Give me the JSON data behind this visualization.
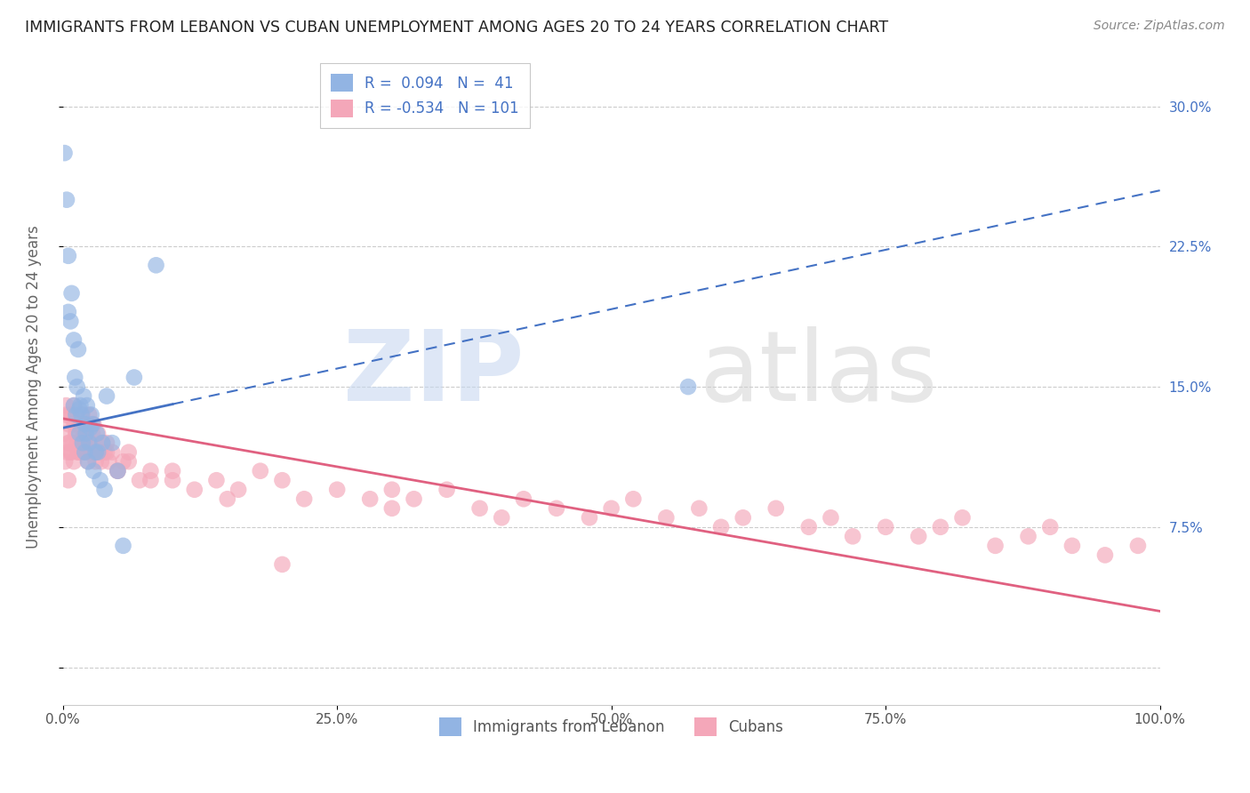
{
  "title": "IMMIGRANTS FROM LEBANON VS CUBAN UNEMPLOYMENT AMONG AGES 20 TO 24 YEARS CORRELATION CHART",
  "source": "Source: ZipAtlas.com",
  "ylabel": "Unemployment Among Ages 20 to 24 years",
  "xlim": [
    0,
    100
  ],
  "ylim": [
    -2,
    32
  ],
  "yticks": [
    0,
    7.5,
    15.0,
    22.5,
    30.0
  ],
  "xticks": [
    0,
    25,
    50,
    75,
    100
  ],
  "xticklabels": [
    "0.0%",
    "25.0%",
    "50.0%",
    "75.0%",
    "100.0%"
  ],
  "yticklabels": [
    "",
    "7.5%",
    "15.0%",
    "22.5%",
    "30.0%"
  ],
  "blue_color": "#92b4e3",
  "pink_color": "#f4a7b9",
  "blue_line_color": "#4472c4",
  "pink_line_color": "#e06080",
  "blue_line_start_x": 0,
  "blue_line_start_y": 12.8,
  "blue_line_end_x": 100,
  "blue_line_end_y": 25.5,
  "blue_solid_end_x": 10,
  "pink_line_start_x": 0,
  "pink_line_start_y": 13.3,
  "pink_line_end_x": 100,
  "pink_line_end_y": 3.0,
  "lebanon_x": [
    0.15,
    0.35,
    0.5,
    0.5,
    0.7,
    0.8,
    1.0,
    1.0,
    1.1,
    1.2,
    1.3,
    1.4,
    1.5,
    1.5,
    1.6,
    1.7,
    1.8,
    1.9,
    2.0,
    2.0,
    2.1,
    2.2,
    2.3,
    2.4,
    2.5,
    2.6,
    2.7,
    2.8,
    3.0,
    3.1,
    3.2,
    3.4,
    3.6,
    3.8,
    4.0,
    4.5,
    5.0,
    5.5,
    6.5,
    8.5,
    57.0
  ],
  "lebanon_y": [
    27.5,
    25.0,
    22.0,
    19.0,
    18.5,
    20.0,
    17.5,
    14.0,
    15.5,
    13.5,
    15.0,
    17.0,
    13.8,
    12.5,
    14.0,
    13.5,
    12.0,
    14.5,
    13.0,
    11.5,
    12.5,
    14.0,
    11.0,
    12.0,
    12.8,
    13.5,
    13.0,
    10.5,
    11.5,
    12.5,
    11.5,
    10.0,
    12.0,
    9.5,
    14.5,
    12.0,
    10.5,
    6.5,
    15.5,
    21.5,
    15.0
  ],
  "cuban_x": [
    0.15,
    0.2,
    0.3,
    0.4,
    0.5,
    0.5,
    0.6,
    0.7,
    0.8,
    0.9,
    1.0,
    1.0,
    1.1,
    1.2,
    1.3,
    1.4,
    1.5,
    1.6,
    1.7,
    1.8,
    1.9,
    2.0,
    2.1,
    2.2,
    2.3,
    2.4,
    2.5,
    2.6,
    2.7,
    2.8,
    3.0,
    3.2,
    3.4,
    3.6,
    3.8,
    4.0,
    4.2,
    4.5,
    5.0,
    5.5,
    6.0,
    7.0,
    8.0,
    10.0,
    12.0,
    14.0,
    16.0,
    18.0,
    20.0,
    22.0,
    25.0,
    28.0,
    30.0,
    32.0,
    35.0,
    38.0,
    40.0,
    42.0,
    45.0,
    48.0,
    50.0,
    52.0,
    55.0,
    58.0,
    60.0,
    62.0,
    65.0,
    68.0,
    70.0,
    72.0,
    75.0,
    78.0,
    80.0,
    82.0,
    85.0,
    88.0,
    90.0,
    92.0,
    95.0,
    98.0,
    0.3,
    0.5,
    0.6,
    0.8,
    1.0,
    1.2,
    1.4,
    1.6,
    2.0,
    2.2,
    2.5,
    3.0,
    3.5,
    4.0,
    5.0,
    6.0,
    8.0,
    10.0,
    15.0,
    20.0,
    30.0
  ],
  "cuban_y": [
    12.5,
    11.0,
    13.5,
    11.5,
    13.0,
    10.0,
    12.0,
    11.5,
    13.5,
    12.0,
    14.0,
    11.0,
    13.0,
    12.5,
    12.0,
    11.5,
    13.0,
    12.0,
    11.5,
    13.5,
    12.5,
    12.0,
    11.5,
    13.0,
    11.0,
    13.5,
    12.0,
    11.5,
    12.5,
    13.0,
    11.0,
    12.5,
    11.5,
    12.0,
    11.5,
    12.0,
    11.0,
    11.5,
    10.5,
    11.0,
    11.5,
    10.0,
    10.5,
    10.0,
    9.5,
    10.0,
    9.5,
    10.5,
    10.0,
    9.0,
    9.5,
    9.0,
    8.5,
    9.0,
    9.5,
    8.5,
    8.0,
    9.0,
    8.5,
    8.0,
    8.5,
    9.0,
    8.0,
    8.5,
    7.5,
    8.0,
    8.5,
    7.5,
    8.0,
    7.0,
    7.5,
    7.0,
    7.5,
    8.0,
    6.5,
    7.0,
    7.5,
    6.5,
    6.0,
    6.5,
    14.0,
    12.0,
    13.5,
    11.5,
    13.0,
    12.5,
    11.5,
    13.0,
    12.5,
    13.0,
    12.0,
    11.5,
    11.0,
    11.5,
    10.5,
    11.0,
    10.0,
    10.5,
    9.0,
    5.5,
    9.5
  ]
}
